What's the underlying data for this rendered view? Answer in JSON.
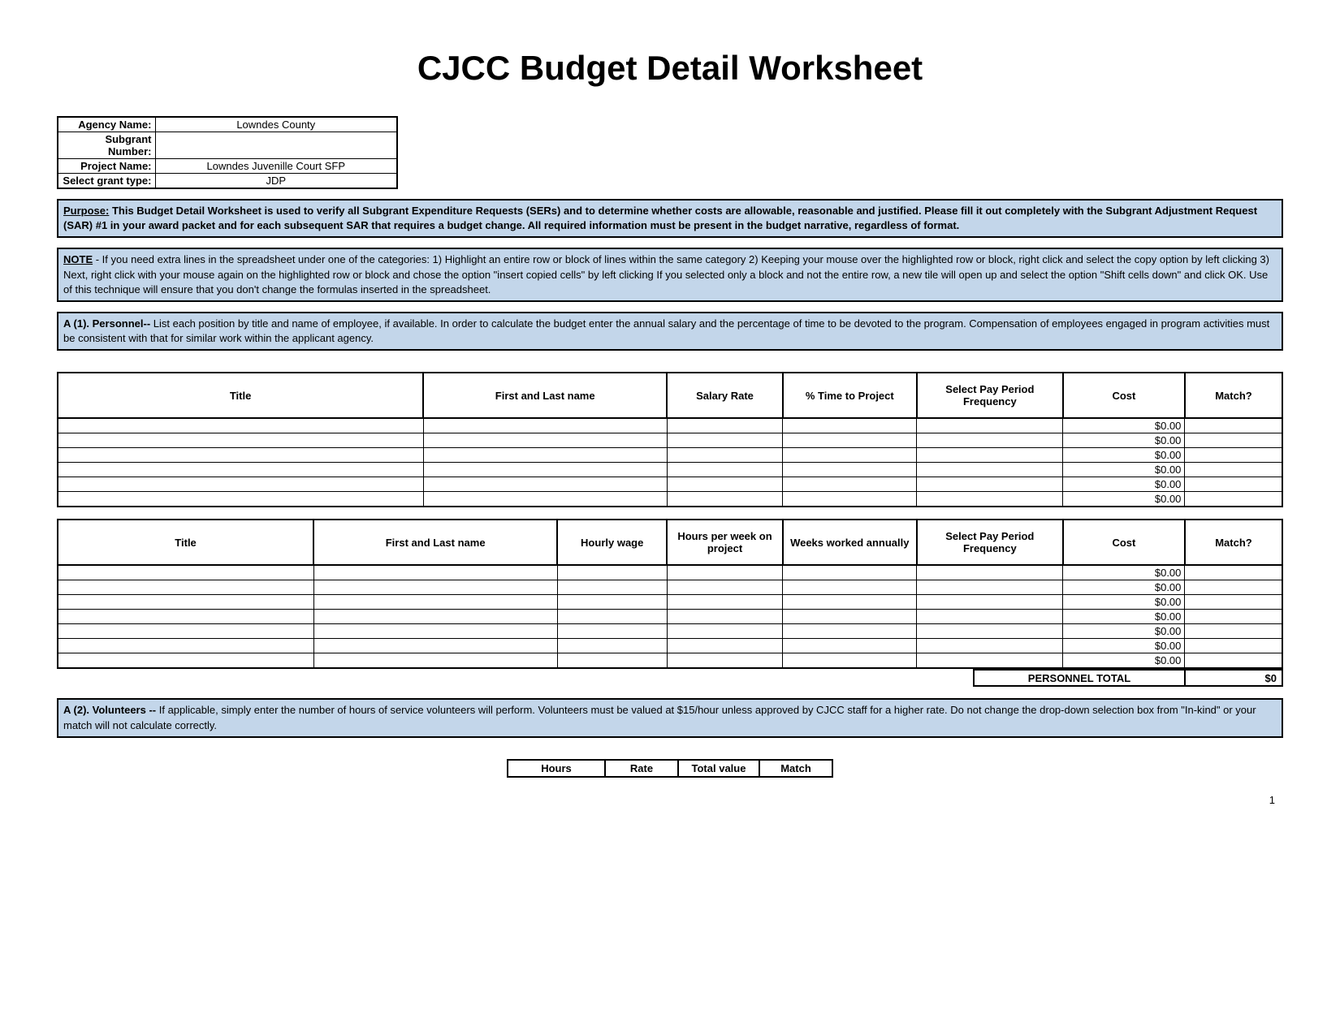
{
  "title": "CJCC Budget Detail Worksheet",
  "info": {
    "labels": {
      "agency": "Agency Name:",
      "subgrant": "Subgrant Number:",
      "project": "Project Name:",
      "grant_type": "Select grant type:"
    },
    "values": {
      "agency": "Lowndes County",
      "subgrant": "",
      "project": "Lowndes Juvenille Court SFP",
      "grant_type": "JDP"
    }
  },
  "purpose": {
    "label": "Purpose:",
    "text": " This Budget Detail Worksheet is used to verify all Subgrant Expenditure Requests (SERs) and to determine whether costs are allowable, reasonable and justified.  Please fill it out completely with the Subgrant Adjustment Request (SAR) #1 in your award packet and for each subsequent SAR that requires a budget change. All required information must be present in the budget narrative, regardless of format."
  },
  "note": {
    "label": "NOTE",
    "text": " - If you need extra lines in the spreadsheet under one of the categories: 1) Highlight an entire row or block of lines within the same category  2) Keeping your mouse over the highlighted row or block, right click and select the copy option by left clicking 3) Next, right click with your mouse again on the highlighted row or block and chose the option \"insert copied cells\" by left clicking  If you selected only a block and not the entire row, a new tile will open up and select the option \"Shift cells down\" and click OK.  Use of this technique will ensure that you don't change the formulas inserted in the spreadsheet."
  },
  "section_a1": {
    "label": "A (1). Personnel--",
    "text": " List each position by title and name of employee, if available.  In order to calculate the budget enter the annual salary and the percentage of time to be devoted to the program.  Compensation of employees engaged in program activities must be consistent with that for similar work within the applicant agency."
  },
  "table1": {
    "headers": [
      "Title",
      "First and Last name",
      "Salary Rate",
      "% Time to Project",
      "Select Pay Period Frequency",
      "Cost",
      "Match?"
    ],
    "col_widths": [
      "24%",
      "16%",
      "10%",
      "10%",
      "10%",
      "10%",
      "10%"
    ],
    "rows": 6,
    "cost_value": "$0.00"
  },
  "table2": {
    "headers": [
      "Title",
      "First and Last name",
      "Hourly wage",
      "Hours per week on project",
      "Weeks worked annually",
      "Select Pay Period Frequency",
      "Cost",
      "Match?"
    ],
    "rows": 7,
    "cost_value": "$0.00"
  },
  "personnel_total": {
    "label": "PERSONNEL TOTAL",
    "value": "$0"
  },
  "section_a2": {
    "label": "A (2). Volunteers --",
    "text": " If applicable, simply enter the number of hours  of service volunteers will perform. Volunteers must be valued at $15/hour unless approved by CJCC staff for a higher rate. Do not change the drop-down selection box from \"In-kind\" or your match will not calculate correctly."
  },
  "vol_table": {
    "headers": [
      "Hours",
      "Rate",
      "Total value",
      "Match"
    ]
  },
  "page_number": "1"
}
